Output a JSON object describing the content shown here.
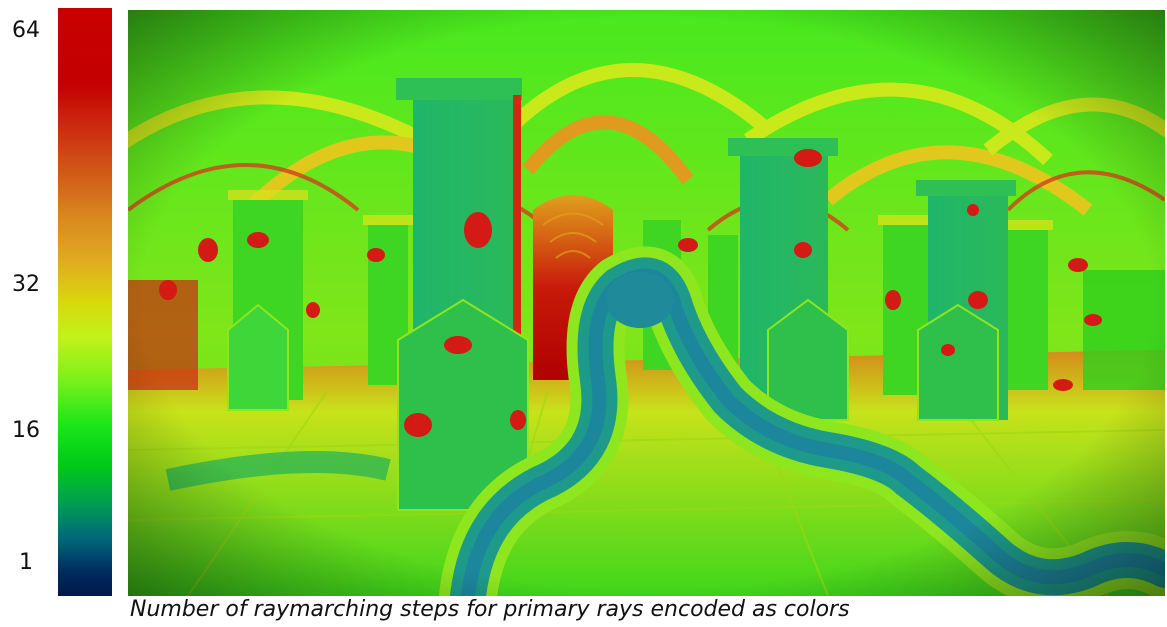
{
  "colorbar": {
    "ticks": [
      {
        "label": "64",
        "value": 64
      },
      {
        "label": "32",
        "value": 32
      },
      {
        "label": "16",
        "value": 16
      },
      {
        "label": "1",
        "value": 1
      }
    ],
    "colors": [
      "#001a4a",
      "#006a7a",
      "#00c81a",
      "#c2f21a",
      "#d98a1f",
      "#c80000"
    ]
  },
  "caption": "Number of raymarching steps for primary rays encoded as colors"
}
